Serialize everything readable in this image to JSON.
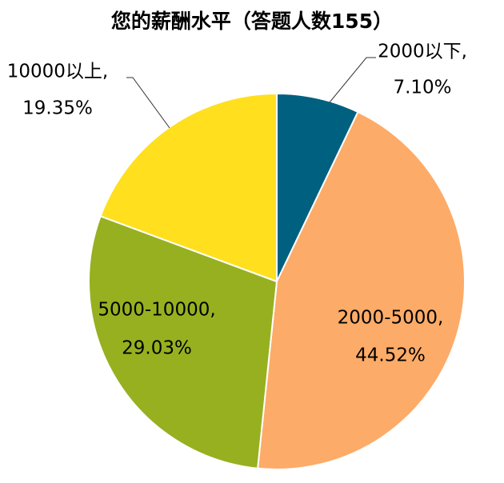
{
  "chart_data": {
    "type": "pie",
    "title": "您的薪酬水平（答题人数155）",
    "categories": [
      "2000以下,",
      "2000-5000,",
      "5000-10000,",
      "10000以上,"
    ],
    "values": [
      7.1,
      44.52,
      29.03,
      19.35
    ],
    "value_labels": [
      "7.10%",
      "44.52%",
      "29.03%",
      "19.35%"
    ],
    "colors": [
      "#00607f",
      "#fdab68",
      "#97b020",
      "#ffdf1e"
    ]
  }
}
